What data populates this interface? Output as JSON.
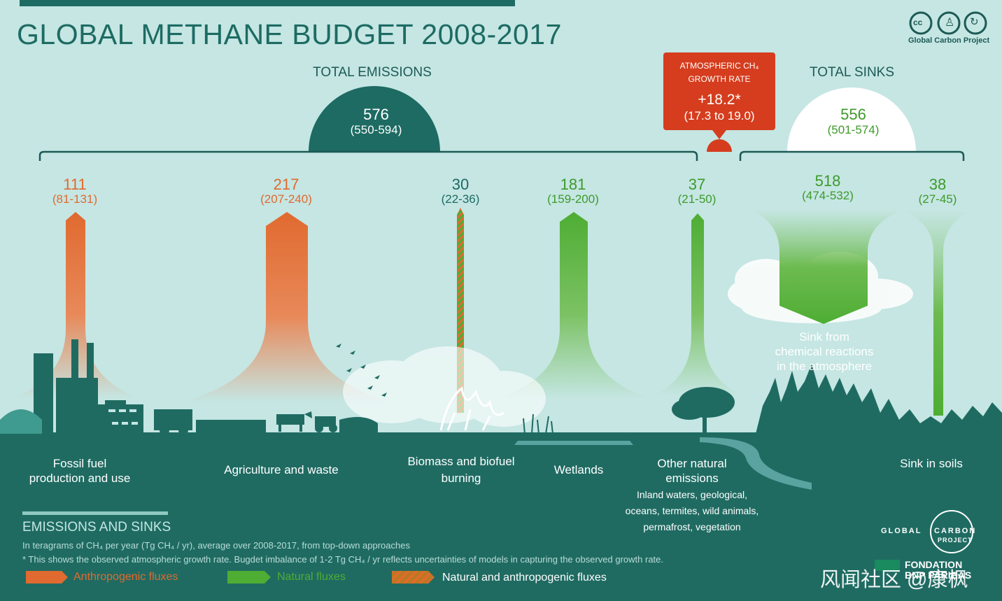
{
  "title": "GLOBAL METHANE BUDGET 2008-2017",
  "publisher": "Global Carbon Project",
  "cc_icons": [
    "cc-icon",
    "by-icon",
    "sa-icon"
  ],
  "total_emissions": {
    "label": "TOTAL EMISSIONS",
    "value": "576",
    "range": "(550-594)"
  },
  "total_sinks": {
    "label": "TOTAL SINKS",
    "value": "556",
    "range": "(501-574)"
  },
  "growth_rate": {
    "label_line1": "ATMOSPHERIC CH₄",
    "label_line2": "GROWTH RATE",
    "value": "+18.2*",
    "range": "(17.3 to 19.0)"
  },
  "sources": [
    {
      "value": "111",
      "range": "(81-131)",
      "label_line1": "Fossil fuel",
      "label_line2": "production and use"
    },
    {
      "value": "217",
      "range": "(207-240)",
      "label_line1": "Agriculture and waste"
    },
    {
      "value": "30",
      "range": "(22-36)",
      "label_line1": "Biomass and biofuel",
      "label_line2": "burning"
    },
    {
      "value": "181",
      "range": "(159-200)",
      "label_line1": "Wetlands"
    },
    {
      "value": "37",
      "range": "(21-50)",
      "label_line1": "Other natural",
      "label_line2": "emissions",
      "details": [
        "Inland waters, geological,",
        "oceans, termites, wild animals,",
        "permafrost, vegetation"
      ]
    }
  ],
  "sinks": [
    {
      "value": "518",
      "range": "(474-532)",
      "label_line1": "Sink from",
      "label_line2": "chemical reactions",
      "label_line3": "in the atmosphere"
    },
    {
      "value": "38",
      "range": "(27-45)",
      "label_line1": "Sink in soils"
    }
  ],
  "legend": {
    "heading": "EMISSIONS AND SINKS",
    "units_note": "In teragrams of CH₄ per year (Tg CH₄ / yr), average over 2008-2017, from top-down approaches",
    "footnote": "* This shows the observed atmospheric growth rate. Bugdet imbalance of 1-2 Tg  CH₄ / yr reflects uncertainties of models in capturing the observed growth rate.",
    "items": [
      "Anthropogenic fluxes",
      "Natural fluxes",
      "Natural and anthropogenic fluxes"
    ]
  },
  "logos": {
    "gcp_line1": "GLOBAL",
    "gcp_line2": "CARBON",
    "gcp_line3": "PROJECT",
    "fondation_line1": "FONDATION",
    "fondation_line2": "BNP PARIBAS"
  },
  "watermark": "风闻社区 @康枫",
  "colors": {
    "background": "#c5e6e3",
    "teal": "#1d6b63",
    "ground": "#1f6b62",
    "anthropogenic": "#e06a2f",
    "natural": "#4ead33",
    "growth_box": "#d53d1e"
  }
}
